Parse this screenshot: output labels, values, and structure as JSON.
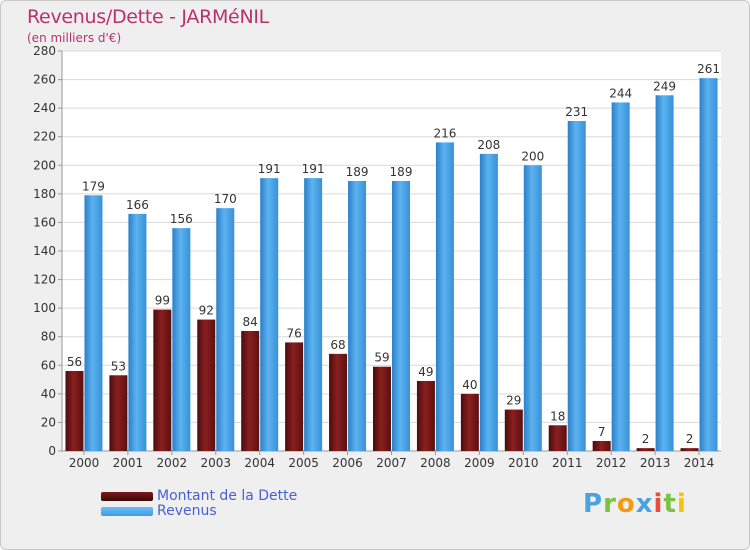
{
  "chart_data": {
    "type": "bar",
    "title": "Revenus/Dette - JARMéNIL",
    "subtitle": "(en milliers d'€)",
    "categories": [
      "2000",
      "2001",
      "2002",
      "2003",
      "2004",
      "2005",
      "2006",
      "2007",
      "2008",
      "2009",
      "2010",
      "2011",
      "2012",
      "2013",
      "2014"
    ],
    "series": [
      {
        "name": "Montant de la Dette",
        "color": "#7a1a1a",
        "values": [
          56,
          53,
          99,
          92,
          84,
          76,
          68,
          59,
          49,
          40,
          29,
          18,
          7,
          2,
          2
        ]
      },
      {
        "name": "Revenus",
        "color": "#3d9ee5",
        "values": [
          179,
          166,
          156,
          170,
          191,
          191,
          189,
          189,
          216,
          208,
          200,
          231,
          244,
          249,
          261
        ]
      }
    ],
    "ylim": [
      0,
      280
    ],
    "yticks": [
      0,
      20,
      40,
      60,
      80,
      100,
      120,
      140,
      160,
      180,
      200,
      220,
      240,
      260,
      280
    ],
    "grid": true,
    "legend_position": "bottom-left"
  },
  "logo": "Proxiti"
}
